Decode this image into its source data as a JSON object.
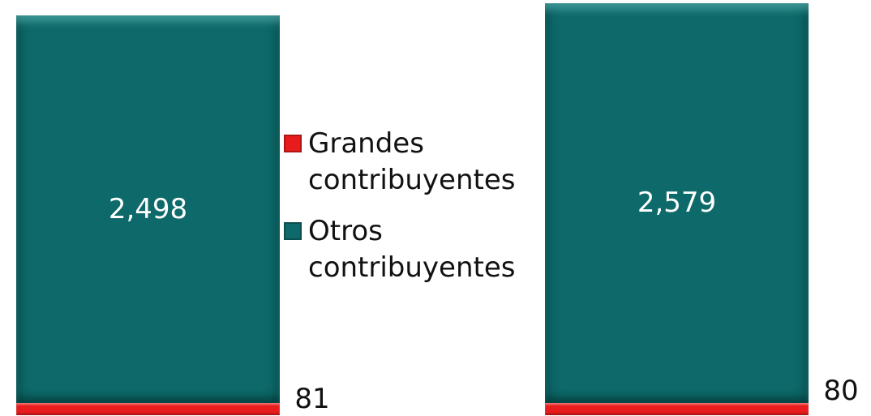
{
  "chart_data": {
    "type": "stacked-bar",
    "categories": [
      null,
      null
    ],
    "series": [
      {
        "name": "Grandes contribuyentes",
        "color": "#e81c1c",
        "values": [
          81,
          80
        ]
      },
      {
        "name": "Otros contribuyentes",
        "color": "#0e6a6a",
        "values": [
          2498,
          2579
        ],
        "value_labels": [
          "2,498",
          "2,579"
        ]
      }
    ]
  }
}
